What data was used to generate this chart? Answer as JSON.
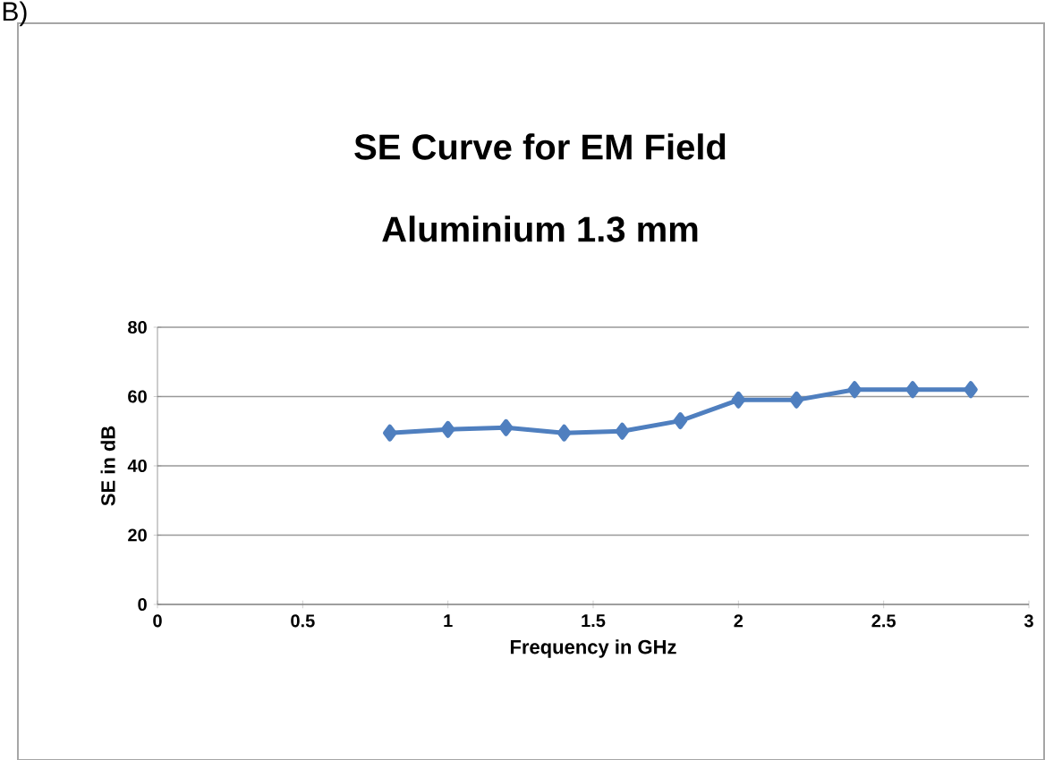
{
  "chart_data": {
    "type": "line",
    "title": "SE Curve for EM Field",
    "subtitle": "Aluminium 1.3 mm",
    "xlabel": "Frequency in  GHz",
    "ylabel": "SE  in  dB",
    "annotations": [
      "B)"
    ],
    "x": [
      0.8,
      1.0,
      1.2,
      1.4,
      1.6,
      1.8,
      2.0,
      2.2,
      2.4,
      2.6,
      2.8
    ],
    "series": [
      {
        "color": "#4f7fbf",
        "values": [
          49.5,
          50.5,
          51,
          49.5,
          50,
          53,
          59,
          59,
          62,
          62,
          62
        ]
      }
    ],
    "xlim": [
      0,
      3
    ],
    "xticks": [
      0,
      0.5,
      1,
      1.5,
      2,
      2.5,
      3
    ],
    "ylim": [
      0,
      80
    ],
    "yticks": [
      0,
      20,
      40,
      60,
      80
    ],
    "grid": "y",
    "marker": "diamond",
    "line_style": "solid"
  }
}
